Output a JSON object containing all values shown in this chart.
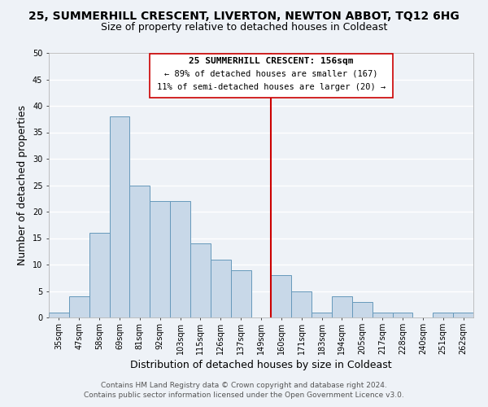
{
  "title": "25, SUMMERHILL CRESCENT, LIVERTON, NEWTON ABBOT, TQ12 6HG",
  "subtitle": "Size of property relative to detached houses in Coldeast",
  "xlabel": "Distribution of detached houses by size in Coldeast",
  "ylabel": "Number of detached properties",
  "bin_labels": [
    "35sqm",
    "47sqm",
    "58sqm",
    "69sqm",
    "81sqm",
    "92sqm",
    "103sqm",
    "115sqm",
    "126sqm",
    "137sqm",
    "149sqm",
    "160sqm",
    "171sqm",
    "183sqm",
    "194sqm",
    "205sqm",
    "217sqm",
    "228sqm",
    "240sqm",
    "251sqm",
    "262sqm"
  ],
  "bar_heights": [
    1,
    4,
    16,
    38,
    25,
    22,
    22,
    14,
    11,
    9,
    0,
    8,
    5,
    1,
    4,
    3,
    1,
    1,
    0,
    1,
    1
  ],
  "bar_color": "#c8d8e8",
  "bar_edge_color": "#6699bb",
  "ylim": [
    0,
    50
  ],
  "yticks": [
    0,
    5,
    10,
    15,
    20,
    25,
    30,
    35,
    40,
    45,
    50
  ],
  "vline_x_index": 11,
  "vline_color": "#cc0000",
  "annotation_title": "25 SUMMERHILL CRESCENT: 156sqm",
  "annotation_line1": "← 89% of detached houses are smaller (167)",
  "annotation_line2": "11% of semi-detached houses are larger (20) →",
  "annotation_box_color": "#ffffff",
  "annotation_box_edge": "#cc0000",
  "footer_line1": "Contains HM Land Registry data © Crown copyright and database right 2024.",
  "footer_line2": "Contains public sector information licensed under the Open Government Licence v3.0.",
  "background_color": "#eef2f7",
  "grid_color": "#ffffff",
  "title_fontsize": 10,
  "subtitle_fontsize": 9,
  "axis_label_fontsize": 9,
  "tick_fontsize": 7,
  "footer_fontsize": 6.5,
  "annot_title_fontsize": 8,
  "annot_text_fontsize": 7.5
}
